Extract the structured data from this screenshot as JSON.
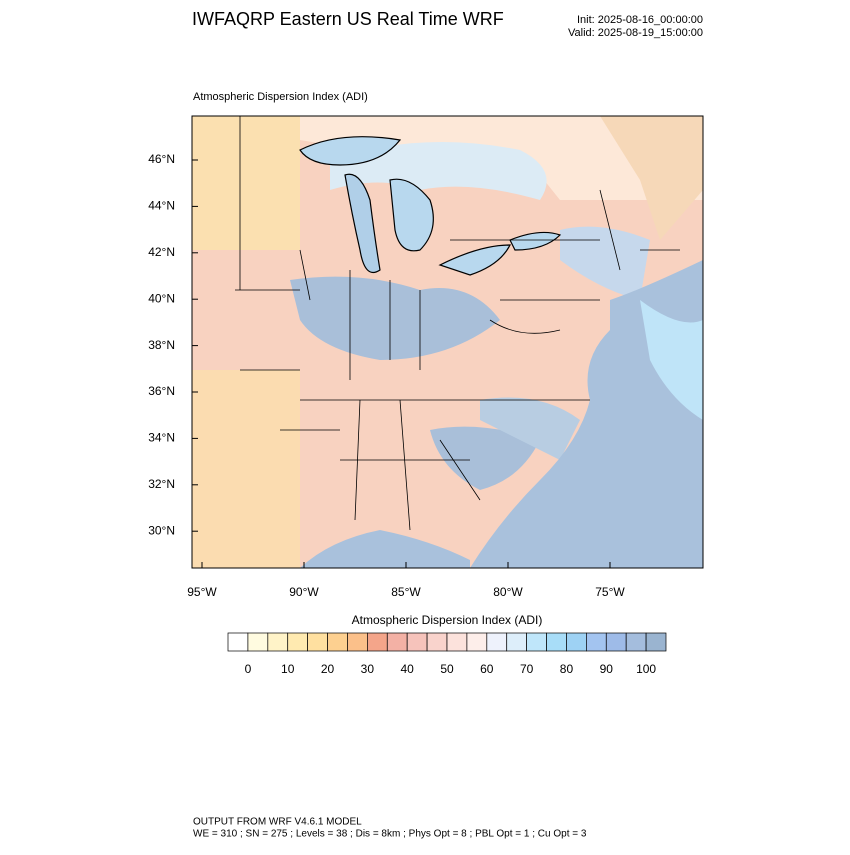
{
  "header": {
    "title": "IWFAQRP Eastern US Real Time WRF",
    "init": "Init: 2025-08-16_00:00:00",
    "valid": "Valid: 2025-08-19_15:00:00"
  },
  "map": {
    "subtitle": "Atmospheric Dispersion Index   (ADI)",
    "lat_labels": [
      "46°N",
      "44°N",
      "42°N",
      "40°N",
      "38°N",
      "36°N",
      "34°N",
      "32°N",
      "30°N"
    ],
    "lon_labels": [
      "95°W",
      "90°W",
      "85°W",
      "80°W",
      "75°W"
    ]
  },
  "colorbar": {
    "title": "Atmospheric Dispersion Index  (ADI)",
    "labels": [
      "0",
      "10",
      "20",
      "30",
      "40",
      "50",
      "60",
      "70",
      "80",
      "90",
      "100"
    ],
    "colors": [
      "#ffffff",
      "#fffbe0",
      "#fff3c8",
      "#ffeab0",
      "#ffe0a0",
      "#fdd090",
      "#fbc08a",
      "#f4a58a",
      "#f3b1a5",
      "#f6c3bb",
      "#f9d3cc",
      "#fce2dc",
      "#fdeeea",
      "#eef2fc",
      "#ddeefa",
      "#bfe6fa",
      "#a8ddf8",
      "#9ed2f4",
      "#a3c4f0",
      "#9ebbe8",
      "#a4bddd",
      "#9ab4d0"
    ]
  },
  "footer": {
    "line1": "OUTPUT FROM WRF V4.6.1 MODEL",
    "line2": "WE = 310 ; SN = 275 ; Levels = 38 ; Dis = 8km ; Phys Opt = 8 ; PBL Opt = 1 ; Cu Opt = 3"
  }
}
